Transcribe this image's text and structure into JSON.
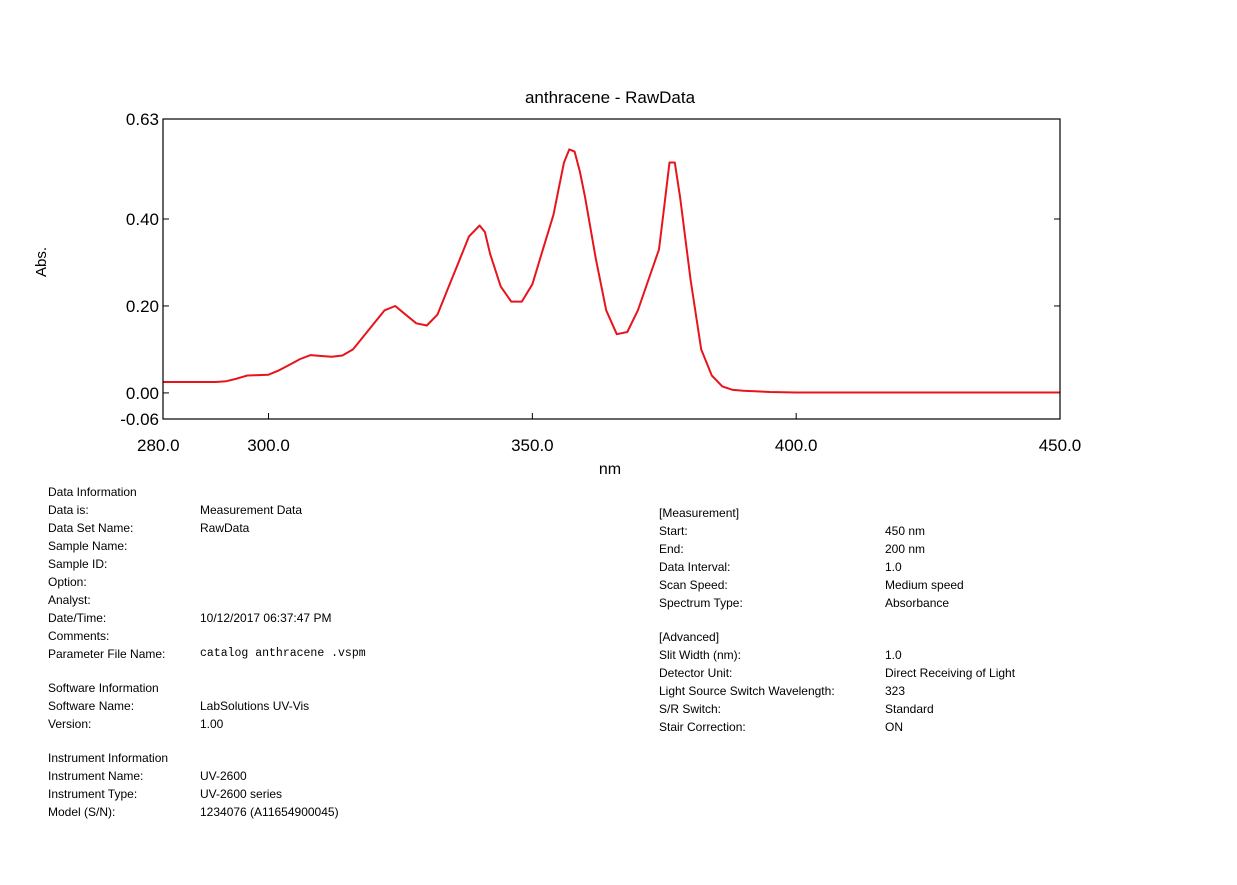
{
  "chart_data": {
    "type": "line",
    "title": "anthracene - RawData",
    "xlabel": "nm",
    "ylabel": "Abs.",
    "xlim": [
      280,
      450
    ],
    "ylim": [
      -0.06,
      0.63
    ],
    "xticks": [
      280.0,
      300.0,
      350.0,
      400.0,
      450.0
    ],
    "xtick_labels": [
      "280.0",
      "300.0",
      "350.0",
      "400.0",
      "450.0"
    ],
    "yticks": [
      -0.06,
      0.0,
      0.2,
      0.4,
      0.63
    ],
    "ytick_labels": [
      "-0.06",
      "0.00",
      "0.20",
      "0.40",
      "0.63"
    ],
    "grid": false,
    "line_color": "#e8141c",
    "series": [
      {
        "x": [
          280,
          285,
          290,
          292,
          294,
          296,
          298,
          300,
          302,
          304,
          306,
          308,
          310,
          312,
          314,
          316,
          318,
          320,
          322,
          324,
          326,
          328,
          330,
          332,
          334,
          336,
          338,
          340,
          341,
          342,
          344,
          346,
          348,
          350,
          352,
          354,
          355,
          356,
          357,
          358,
          359,
          360,
          362,
          364,
          366,
          368,
          370,
          372,
          374,
          375,
          376,
          377,
          378,
          380,
          382,
          384,
          386,
          388,
          390,
          395,
          400,
          420,
          450
        ],
        "y": [
          0.025,
          0.025,
          0.025,
          0.027,
          0.033,
          0.04,
          0.041,
          0.042,
          0.052,
          0.065,
          0.078,
          0.087,
          0.085,
          0.083,
          0.086,
          0.1,
          0.13,
          0.16,
          0.19,
          0.2,
          0.18,
          0.16,
          0.155,
          0.18,
          0.24,
          0.3,
          0.36,
          0.385,
          0.37,
          0.32,
          0.245,
          0.21,
          0.21,
          0.25,
          0.33,
          0.41,
          0.47,
          0.53,
          0.56,
          0.555,
          0.51,
          0.45,
          0.31,
          0.19,
          0.135,
          0.14,
          0.19,
          0.26,
          0.33,
          0.43,
          0.53,
          0.53,
          0.45,
          0.26,
          0.1,
          0.04,
          0.015,
          0.007,
          0.005,
          0.002,
          0.001,
          0.001,
          0.001
        ]
      }
    ]
  },
  "data_information": {
    "heading": "Data Information",
    "rows": [
      {
        "key": "Data is:",
        "value": "Measurement Data"
      },
      {
        "key": "Data Set Name:",
        "value": "RawData"
      },
      {
        "key": "Sample Name:",
        "value": ""
      },
      {
        "key": "Sample ID:",
        "value": ""
      },
      {
        "key": "Option:",
        "value": ""
      },
      {
        "key": "Analyst:",
        "value": ""
      },
      {
        "key": "Date/Time:",
        "value": "10/12/2017 06:37:47 PM"
      },
      {
        "key": "Comments:",
        "value": ""
      },
      {
        "key": "Parameter File Name:",
        "value": "catalog anthracene .vspm"
      }
    ]
  },
  "software_information": {
    "heading": "Software Information",
    "rows": [
      {
        "key": "Software Name:",
        "value": "LabSolutions UV-Vis"
      },
      {
        "key": "Version:",
        "value": "1.00"
      }
    ]
  },
  "instrument_information": {
    "heading": "Instrument Information",
    "rows": [
      {
        "key": "Instrument Name:",
        "value": "UV-2600"
      },
      {
        "key": "Instrument Type:",
        "value": "UV-2600 series"
      },
      {
        "key": "Model (S/N):",
        "value": "1234076 (A11654900045)"
      }
    ]
  },
  "measurement": {
    "heading": "[Measurement]",
    "rows": [
      {
        "key": "Start:",
        "value": "450 nm"
      },
      {
        "key": "End:",
        "value": "200 nm"
      },
      {
        "key": "Data Interval:",
        "value": "1.0"
      },
      {
        "key": "Scan Speed:",
        "value": "Medium speed"
      },
      {
        "key": "Spectrum Type:",
        "value": "Absorbance"
      }
    ]
  },
  "advanced": {
    "heading": "[Advanced]",
    "rows": [
      {
        "key": "Slit Width (nm):",
        "value": "1.0"
      },
      {
        "key": "Detector Unit:",
        "value": "Direct Receiving of Light"
      },
      {
        "key": "Light Source Switch Wavelength:",
        "value": "323"
      },
      {
        "key": "S/R Switch:",
        "value": "Standard"
      },
      {
        "key": "Stair Correction:",
        "value": "ON"
      }
    ]
  }
}
